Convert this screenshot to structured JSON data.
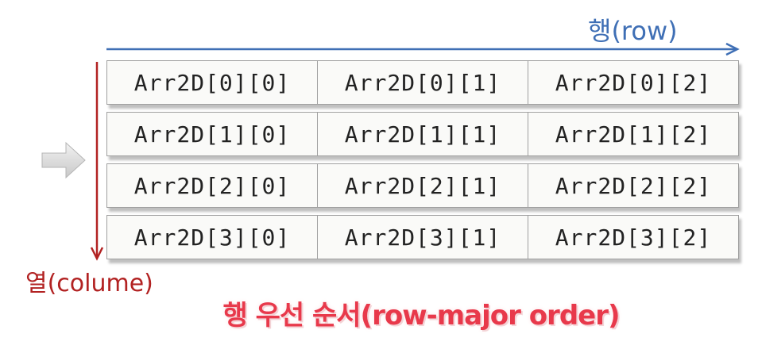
{
  "labels": {
    "row": "행(row)",
    "column": "열(colume)",
    "caption": "행 우선 순서(row-major order)"
  },
  "matrix": {
    "rows": [
      [
        "Arr2D[0][0]",
        "Arr2D[0][1]",
        "Arr2D[0][2]"
      ],
      [
        "Arr2D[1][0]",
        "Arr2D[1][1]",
        "Arr2D[1][2]"
      ],
      [
        "Arr2D[2][0]",
        "Arr2D[2][1]",
        "Arr2D[2][2]"
      ],
      [
        "Arr2D[3][0]",
        "Arr2D[3][1]",
        "Arr2D[3][2]"
      ]
    ]
  },
  "colors": {
    "row_arrow": "#3f6fb5",
    "column_arrow": "#b22222",
    "caption": "#e8394b"
  }
}
